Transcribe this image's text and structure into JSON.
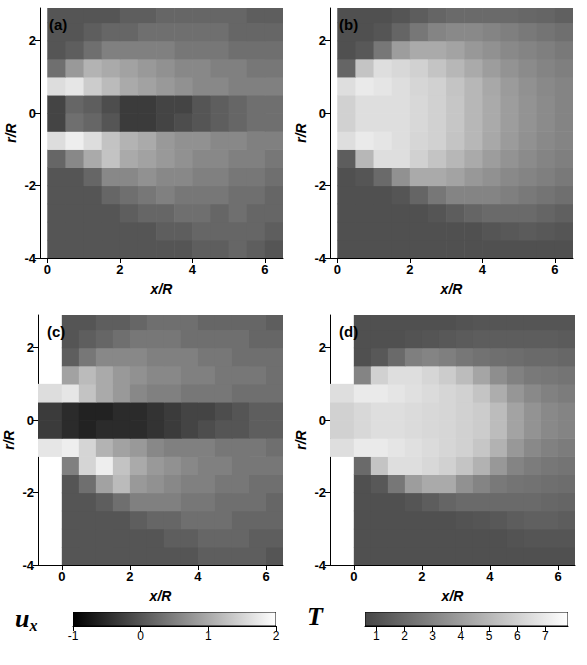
{
  "chart_data": [
    {
      "type": "heatmap",
      "title": "(a)",
      "x_label": "x/R",
      "y_label": "r/R",
      "xlim": [
        -0.2,
        6.5
      ],
      "ylim": [
        -4,
        2.9
      ],
      "xticks": [
        0,
        2,
        4,
        6
      ],
      "yticks": [
        -4,
        -2,
        0,
        2
      ],
      "x_edges": [
        0,
        0.5,
        1,
        1.5,
        2,
        2.5,
        3,
        3.5,
        4,
        4.5,
        5,
        5.5,
        6,
        6.5
      ],
      "r_edges": [
        -4,
        -3.5,
        -3,
        -2.5,
        -2,
        -1.5,
        -1,
        -0.5,
        0,
        0.5,
        1,
        1.5,
        2,
        2.5,
        2.9
      ],
      "cells": [
        [
          0,
          0,
          0,
          0,
          0,
          0,
          0,
          0,
          0.1,
          0.1,
          0.2,
          0.1,
          0
        ],
        [
          0,
          0,
          0,
          0,
          0,
          0,
          0.1,
          0.1,
          0.2,
          0.2,
          0.2,
          0.2,
          0.1
        ],
        [
          0,
          0,
          0,
          0,
          0.1,
          0.2,
          0.2,
          0.3,
          0.3,
          0.2,
          0.3,
          0.2,
          0.2
        ],
        [
          0,
          0,
          0,
          0.2,
          0.3,
          0.4,
          0.5,
          0.4,
          0.4,
          0.4,
          0.3,
          0.3,
          0.2
        ],
        [
          0,
          0,
          0.2,
          0.6,
          0.6,
          0.7,
          0.6,
          0.6,
          0.5,
          0.5,
          0.4,
          0.4,
          0.3
        ],
        [
          0.2,
          0.6,
          1.0,
          1.3,
          1.0,
          0.9,
          0.8,
          0.7,
          0.6,
          0.6,
          0.5,
          0.5,
          0.4
        ],
        [
          1.6,
          1.8,
          1.6,
          1.3,
          1.1,
          1.0,
          0.8,
          0.7,
          0.7,
          0.6,
          0.6,
          0.5,
          0.5
        ],
        [
          -0.2,
          0.3,
          0.2,
          0,
          -0.3,
          -0.3,
          -0.2,
          -0.1,
          0,
          0.1,
          0.2,
          0.3,
          0.3
        ],
        [
          -0.2,
          0.2,
          0.1,
          -0.1,
          -0.3,
          -0.3,
          -0.2,
          -0.2,
          0,
          0.1,
          0.2,
          0.3,
          0.3
        ],
        [
          1.6,
          1.7,
          1.4,
          1.2,
          1.0,
          0.9,
          0.8,
          0.7,
          0.6,
          0.6,
          0.5,
          0.5,
          0.5
        ],
        [
          0.3,
          0.8,
          1.1,
          1.0,
          0.9,
          0.8,
          0.7,
          0.6,
          0.6,
          0.5,
          0.5,
          0.4,
          0.4
        ],
        [
          0,
          0.1,
          0.3,
          0.5,
          0.5,
          0.5,
          0.5,
          0.4,
          0.4,
          0.4,
          0.3,
          0.3,
          0.3
        ],
        [
          0,
          0,
          0.1,
          0.2,
          0.2,
          0.3,
          0.3,
          0.3,
          0.3,
          0.3,
          0.2,
          0.2,
          0.2
        ],
        [
          0,
          0,
          0,
          0,
          0.1,
          0.1,
          0.2,
          0.2,
          0.2,
          0.2,
          0.2,
          0.1,
          0.1
        ]
      ],
      "colorbar": {
        "range": [
          -1,
          2
        ],
        "ticks": [
          -1,
          0,
          1,
          2
        ]
      }
    },
    {
      "type": "heatmap",
      "title": "(b)",
      "x_label": "x/R",
      "y_label": "r/R",
      "xlim": [
        -0.2,
        6.5
      ],
      "ylim": [
        -4,
        2.9
      ],
      "xticks": [
        0,
        2,
        4,
        6
      ],
      "yticks": [
        -4,
        -2,
        0,
        2
      ],
      "x_edges": [
        0,
        0.5,
        1,
        1.5,
        2,
        2.5,
        3,
        3.5,
        4,
        4.5,
        5,
        5.5,
        6,
        6.5
      ],
      "r_edges": [
        -4,
        -3.5,
        -3,
        -2.5,
        -2,
        -1.5,
        -1,
        -0.5,
        0,
        0.5,
        1,
        1.5,
        2,
        2.5,
        2.9
      ],
      "cells": [
        [
          1,
          1,
          1,
          1,
          1,
          1,
          1,
          1,
          1,
          1,
          1,
          1,
          1
        ],
        [
          1,
          1,
          1,
          1,
          1,
          1,
          1,
          1,
          1.2,
          1.3,
          1.4,
          1.3,
          1.2
        ],
        [
          1,
          1,
          1,
          1,
          1,
          1.2,
          1.5,
          1.8,
          2,
          2,
          2,
          1.8,
          1.6
        ],
        [
          1,
          1,
          1,
          1.2,
          1.8,
          2.5,
          3,
          3,
          3,
          2.8,
          2.6,
          2.4,
          2.2
        ],
        [
          1,
          1.2,
          2,
          3.5,
          4.5,
          4.5,
          4.2,
          3.8,
          3.5,
          3.2,
          3,
          2.8,
          2.6
        ],
        [
          1.5,
          5,
          6.5,
          6.5,
          6,
          5.5,
          5,
          4.5,
          4,
          3.6,
          3.3,
          3,
          2.8
        ],
        [
          6.5,
          7,
          6.8,
          6.5,
          6.2,
          6,
          5.5,
          5,
          4.4,
          3.9,
          3.5,
          3.2,
          3
        ],
        [
          6,
          6.5,
          6.5,
          6.5,
          6.3,
          6,
          5.6,
          5,
          4.5,
          4,
          3.6,
          3.3,
          3
        ],
        [
          6,
          6.5,
          6.5,
          6.5,
          6.3,
          6,
          5.6,
          5,
          4.5,
          4,
          3.6,
          3.3,
          3
        ],
        [
          6.5,
          7,
          6.8,
          6.5,
          6.2,
          6,
          5.5,
          5,
          4.4,
          3.9,
          3.5,
          3.2,
          3
        ],
        [
          1.8,
          5.5,
          6.5,
          6.3,
          6,
          5.5,
          5,
          4.5,
          4,
          3.6,
          3.3,
          3,
          2.8
        ],
        [
          1,
          1.3,
          2.5,
          4,
          4.5,
          4.5,
          4.2,
          3.8,
          3.5,
          3.2,
          3,
          2.8,
          2.6
        ],
        [
          1,
          1,
          1.2,
          1.8,
          2.5,
          3,
          3.2,
          3.2,
          3,
          2.8,
          2.6,
          2.4,
          2.2
        ],
        [
          1,
          1,
          1,
          1.2,
          1.5,
          1.8,
          2,
          2,
          2,
          2,
          1.9,
          1.8,
          1.6
        ]
      ],
      "colorbar": {
        "range": [
          0.6,
          7.8
        ],
        "ticks": [
          1,
          2,
          3,
          4,
          5,
          6,
          7
        ]
      }
    },
    {
      "type": "heatmap",
      "title": "(c)",
      "x_label": "x/R",
      "y_label": "r/R",
      "xlim": [
        -0.7,
        6.5
      ],
      "ylim": [
        -4,
        2.9
      ],
      "xticks": [
        0,
        2,
        4,
        6
      ],
      "yticks": [
        -4,
        -2,
        0,
        2
      ],
      "x_edges": [
        -0.7,
        0,
        0.5,
        1,
        1.5,
        2,
        2.5,
        3,
        3.5,
        4,
        4.5,
        5,
        5.5,
        6,
        6.5
      ],
      "r_edges": [
        -4,
        -3.5,
        -3,
        -2.5,
        -2,
        -1.5,
        -1,
        -0.5,
        0,
        0.5,
        1,
        1.5,
        2,
        2.5,
        2.9
      ],
      "cells": [
        [
          null,
          0,
          0,
          0,
          0,
          0,
          0,
          0,
          0,
          0.1,
          0.1,
          0.1,
          0.1,
          0
        ],
        [
          null,
          0,
          0,
          0,
          0,
          0,
          0,
          0.1,
          0.1,
          0.2,
          0.2,
          0.2,
          0.1,
          0.1
        ],
        [
          null,
          0,
          0,
          0,
          0,
          0.1,
          0.2,
          0.2,
          0.3,
          0.3,
          0.3,
          0.2,
          0.2,
          0.2
        ],
        [
          null,
          0,
          0,
          0.1,
          0.3,
          0.5,
          0.5,
          0.5,
          0.4,
          0.4,
          0.3,
          0.3,
          0.3,
          0.2
        ],
        [
          null,
          0,
          0.3,
          0.9,
          1.2,
          0.8,
          0.7,
          0.6,
          0.5,
          0.5,
          0.4,
          0.4,
          0.3,
          0.3
        ],
        [
          null,
          0.5,
          1.5,
          1.8,
          1.3,
          1.0,
          0.8,
          0.7,
          0.6,
          0.5,
          0.5,
          0.4,
          0.4,
          0.4
        ],
        [
          1.7,
          1.8,
          1.5,
          1.1,
          0.9,
          0.8,
          0.6,
          0.5,
          0.5,
          0.5,
          0.4,
          0.4,
          0.4,
          0.3
        ],
        [
          -0.3,
          -0.5,
          -0.6,
          -0.5,
          -0.5,
          -0.5,
          -0.4,
          -0.3,
          -0.2,
          -0.1,
          0,
          0,
          0.1,
          0.1
        ],
        [
          -0.3,
          -0.5,
          -0.6,
          -0.6,
          -0.5,
          -0.5,
          -0.4,
          -0.3,
          -0.2,
          -0.2,
          -0.1,
          0,
          0.1,
          0.1
        ],
        [
          1.6,
          1.7,
          1.3,
          1.0,
          0.8,
          0.6,
          0.5,
          0.5,
          0.4,
          0.4,
          0.4,
          0.3,
          0.3,
          0.3
        ],
        [
          null,
          0.9,
          1.2,
          1.0,
          0.8,
          0.7,
          0.6,
          0.6,
          0.5,
          0.5,
          0.4,
          0.4,
          0.4,
          0.3
        ],
        [
          null,
          0.1,
          0.4,
          0.6,
          0.6,
          0.6,
          0.5,
          0.5,
          0.5,
          0.4,
          0.4,
          0.3,
          0.3,
          0.3
        ],
        [
          null,
          0,
          0.1,
          0.2,
          0.3,
          0.4,
          0.4,
          0.4,
          0.3,
          0.3,
          0.3,
          0.3,
          0.2,
          0.2
        ],
        [
          null,
          0,
          0,
          0.1,
          0.1,
          0.2,
          0.3,
          0.3,
          0.3,
          0.2,
          0.2,
          0.2,
          0.2,
          0.1
        ]
      ],
      "colorbar": {
        "label": {
          "symbol": "u",
          "subscript": "x"
        },
        "range": [
          -1,
          2
        ],
        "ticks": [
          -1,
          0,
          1,
          2
        ]
      }
    },
    {
      "type": "heatmap",
      "title": "(d)",
      "x_label": "x/R",
      "y_label": "r/R",
      "xlim": [
        -0.7,
        6.5
      ],
      "ylim": [
        -4,
        2.9
      ],
      "xticks": [
        0,
        2,
        4,
        6
      ],
      "yticks": [
        -4,
        -2,
        0,
        2
      ],
      "x_edges": [
        -0.7,
        0,
        0.5,
        1,
        1.5,
        2,
        2.5,
        3,
        3.5,
        4,
        4.5,
        5,
        5.5,
        6,
        6.5
      ],
      "r_edges": [
        -4,
        -3.5,
        -3,
        -2.5,
        -2,
        -1.5,
        -1,
        -0.5,
        0,
        0.5,
        1,
        1.5,
        2,
        2.5,
        2.9
      ],
      "cells": [
        [
          null,
          1,
          1,
          1,
          1,
          1,
          1,
          1,
          1,
          1,
          1,
          1,
          1,
          1
        ],
        [
          null,
          1,
          1,
          1,
          1,
          1,
          1,
          1,
          1,
          1,
          1.1,
          1.2,
          1.2,
          1.2
        ],
        [
          null,
          1,
          1,
          1,
          1,
          1,
          1,
          1.1,
          1.2,
          1.3,
          1.5,
          1.6,
          1.6,
          1.5
        ],
        [
          null,
          1,
          1,
          1,
          1.2,
          1.5,
          1.8,
          2,
          2,
          2,
          2,
          2,
          1.9,
          1.8
        ],
        [
          null,
          1,
          1.3,
          2.5,
          4,
          4.5,
          4.5,
          3.5,
          3,
          2.6,
          2.4,
          2.3,
          2.2,
          2.1
        ],
        [
          null,
          2,
          5.5,
          6.5,
          6.5,
          6.3,
          6,
          5.5,
          4.8,
          3.8,
          3,
          2.7,
          2.5,
          2.4
        ],
        [
          6.5,
          7,
          7,
          6.8,
          6.6,
          6.4,
          6.2,
          6,
          5.6,
          4.8,
          3.8,
          3.2,
          2.9,
          2.7
        ],
        [
          6,
          6.3,
          6.5,
          6.5,
          6.4,
          6.3,
          6.2,
          6,
          5.8,
          5.2,
          4.2,
          3.6,
          3.2,
          3
        ],
        [
          6,
          6.3,
          6.5,
          6.5,
          6.4,
          6.3,
          6.2,
          6,
          5.8,
          5.2,
          4.2,
          3.6,
          3.2,
          3
        ],
        [
          6.5,
          7,
          7,
          6.8,
          6.6,
          6.4,
          6.2,
          6,
          5.5,
          4.6,
          3.7,
          3.2,
          2.9,
          2.7
        ],
        [
          null,
          3,
          6,
          6.5,
          6.5,
          6.2,
          5.8,
          5.2,
          4.3,
          3.4,
          2.9,
          2.6,
          2.5,
          2.4
        ],
        [
          null,
          1,
          1.3,
          2,
          2.8,
          3,
          2.8,
          2.5,
          2.3,
          2.2,
          2.1,
          2,
          2,
          1.9
        ],
        [
          null,
          1,
          1,
          1,
          1.1,
          1.2,
          1.3,
          1.4,
          1.5,
          1.5,
          1.5,
          1.5,
          1.5,
          1.4
        ],
        [
          null,
          1,
          1,
          1,
          1,
          1,
          1,
          1.1,
          1.2,
          1.2,
          1.2,
          1.2,
          1.2,
          1.2
        ]
      ],
      "colorbar": {
        "label": {
          "symbol": "T"
        },
        "range": [
          0.6,
          7.8
        ],
        "ticks": [
          1,
          2,
          3,
          4,
          5,
          6,
          7
        ]
      }
    }
  ]
}
